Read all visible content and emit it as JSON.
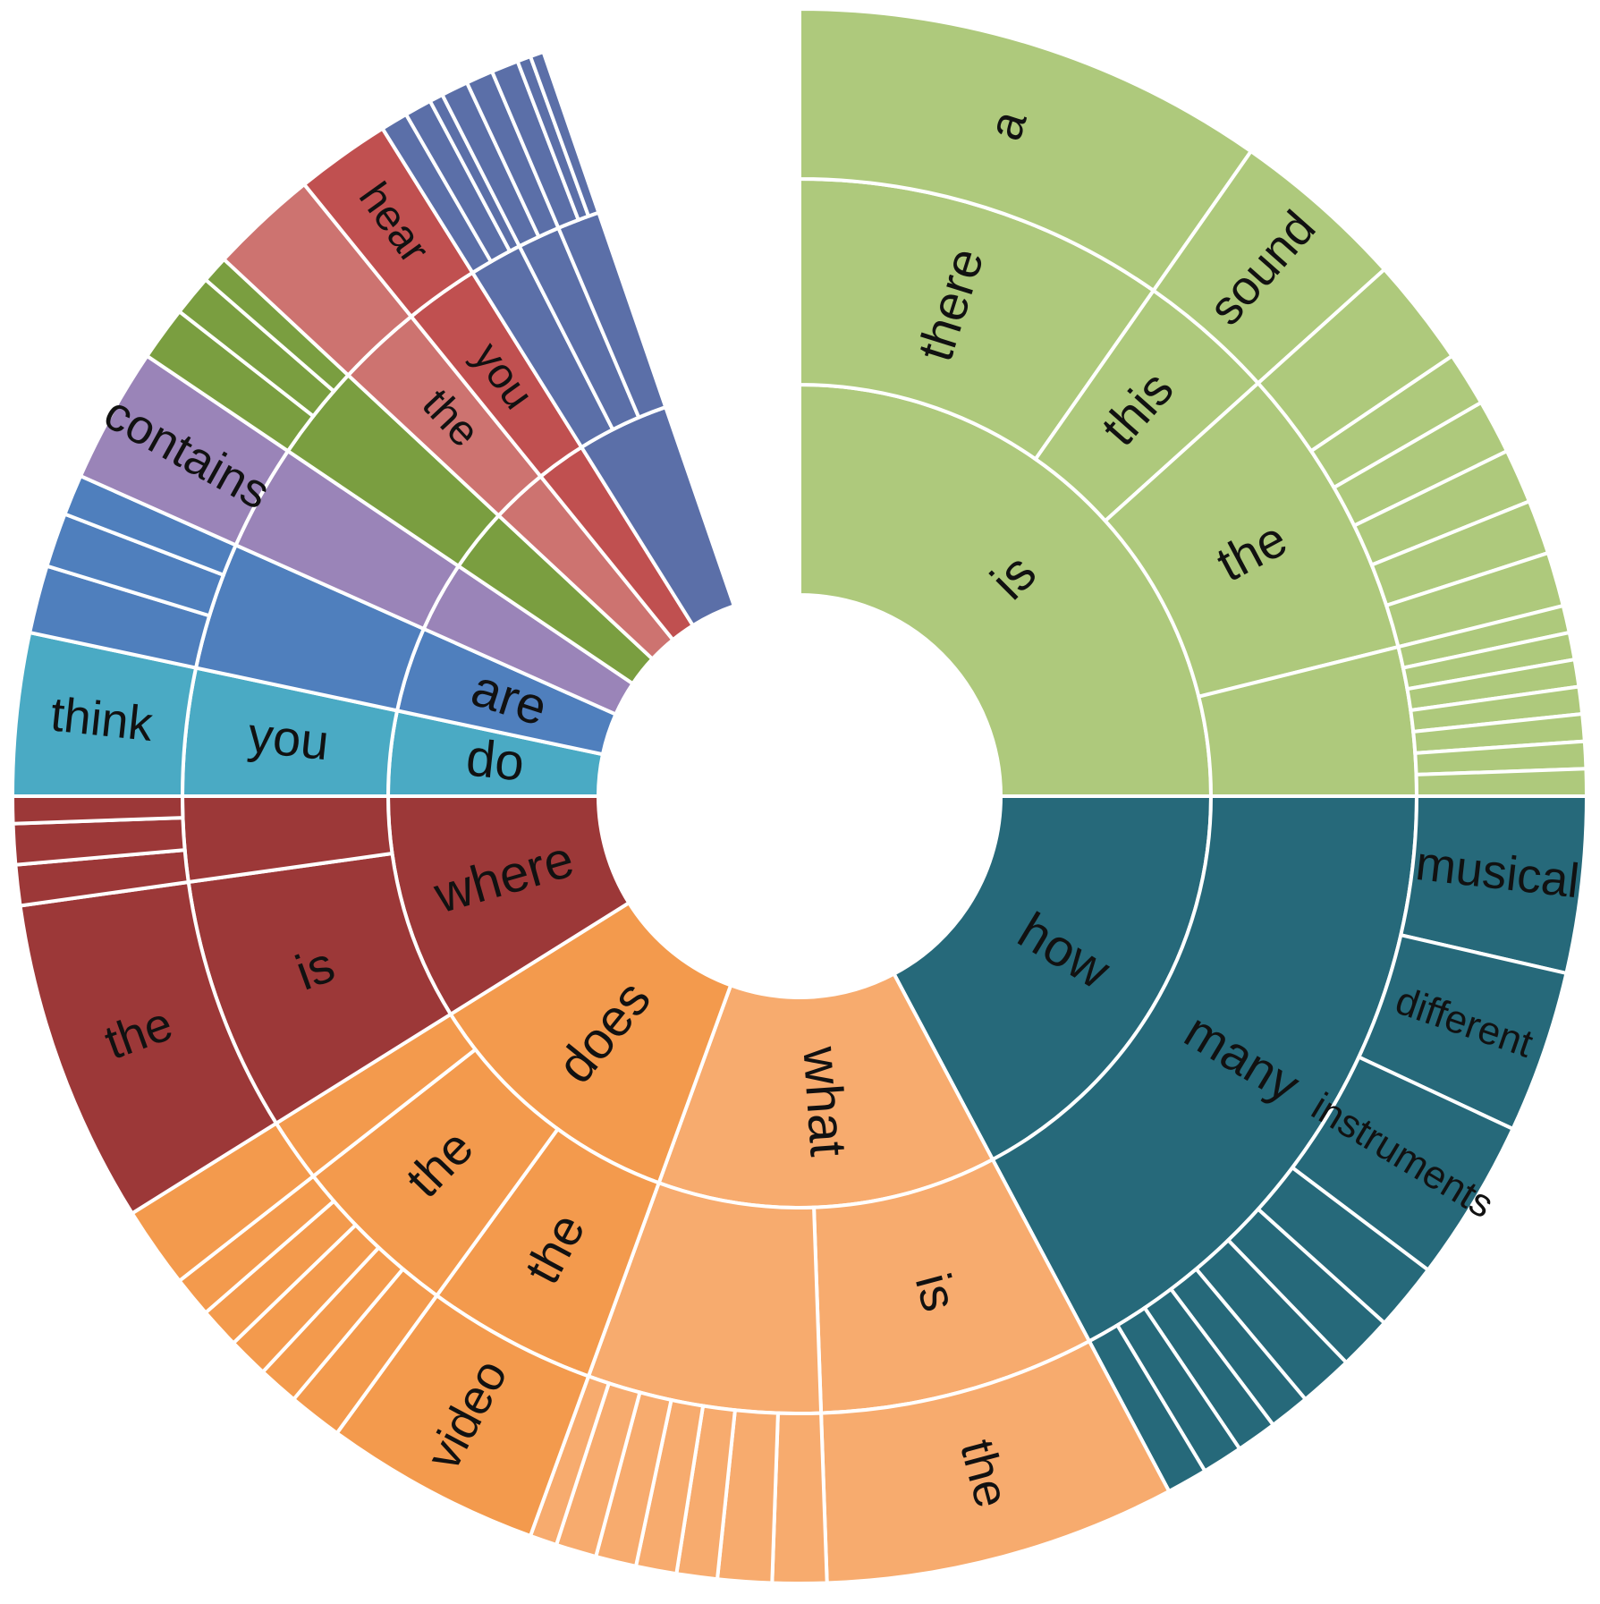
{
  "chart_data": {
    "type": "sunburst",
    "title": "",
    "value_unit": "degrees of arc",
    "rings": [
      "first word",
      "second word",
      "third word"
    ],
    "children": [
      {
        "name": "is",
        "value": 90,
        "color": "#aec97c",
        "children": [
          {
            "name": "there",
            "value": 35,
            "children": [
              {
                "name": "a",
                "value": 35
              }
            ]
          },
          {
            "name": "this",
            "value": 13,
            "children": [
              {
                "name": "sound",
                "value": 13
              }
            ]
          },
          {
            "name": "the",
            "value": 28,
            "children": [
              {
                "name": "",
                "value": 8
              },
              {
                "name": "",
                "value": 4
              },
              {
                "name": "",
                "value": 4
              },
              {
                "name": "",
                "value": 4
              },
              {
                "name": "",
                "value": 4
              },
              {
                "name": "",
                "value": 4
              }
            ]
          },
          {
            "name": "",
            "value": 14,
            "children": [
              {
                "name": "",
                "value": 2
              },
              {
                "name": "",
                "value": 2
              },
              {
                "name": "",
                "value": 2
              },
              {
                "name": "",
                "value": 2
              },
              {
                "name": "",
                "value": 2
              },
              {
                "name": "",
                "value": 2
              },
              {
                "name": "",
                "value": 2
              }
            ]
          }
        ]
      },
      {
        "name": "how",
        "value": 62,
        "color": "#26697a",
        "children": [
          {
            "name": "many",
            "value": 62,
            "children": [
              {
                "name": "musical",
                "value": 13
              },
              {
                "name": "different",
                "value": 12
              },
              {
                "name": "instruments",
                "value": 12
              },
              {
                "name": "",
                "value": 5
              },
              {
                "name": "",
                "value": 4
              },
              {
                "name": "",
                "value": 4
              },
              {
                "name": "",
                "value": 3
              },
              {
                "name": "",
                "value": 3
              },
              {
                "name": "",
                "value": 3
              },
              {
                "name": "",
                "value": 3
              }
            ]
          }
        ]
      },
      {
        "name": "what",
        "value": 48,
        "color": "#f7ab6e",
        "children": [
          {
            "name": "is",
            "value": 26,
            "children": [
              {
                "name": "the",
                "value": 26
              }
            ]
          },
          {
            "name": "",
            "value": 22,
            "children": [
              {
                "name": "",
                "value": 4
              },
              {
                "name": "",
                "value": 4
              },
              {
                "name": "",
                "value": 3
              },
              {
                "name": "",
                "value": 3
              },
              {
                "name": "",
                "value": 3
              },
              {
                "name": "",
                "value": 3
              },
              {
                "name": "",
                "value": 2
              }
            ]
          }
        ]
      },
      {
        "name": "does",
        "value": 38,
        "color": "#f39a4d",
        "children": [
          {
            "name": "the",
            "value": 16,
            "children": [
              {
                "name": "video",
                "value": 16
              }
            ]
          },
          {
            "name": "the",
            "value": 16,
            "children": [
              {
                "name": "",
                "value": 4
              },
              {
                "name": "",
                "value": 3
              },
              {
                "name": "",
                "value": 3
              },
              {
                "name": "",
                "value": 3
              },
              {
                "name": "",
                "value": 3
              }
            ]
          },
          {
            "name": "",
            "value": 6,
            "children": [
              {
                "name": "",
                "value": 6
              }
            ]
          }
        ]
      },
      {
        "name": "where",
        "value": 32,
        "color": "#9c3838",
        "children": [
          {
            "name": "is",
            "value": 24,
            "children": [
              {
                "name": "the",
                "value": 24
              }
            ]
          },
          {
            "name": "",
            "value": 8,
            "children": [
              {
                "name": "",
                "value": 3
              },
              {
                "name": "",
                "value": 3
              },
              {
                "name": "",
                "value": 2
              }
            ]
          }
        ]
      },
      {
        "name": "do",
        "value": 12,
        "color": "#4aaac4",
        "children": [
          {
            "name": "you",
            "value": 12,
            "children": [
              {
                "name": "think",
                "value": 12
              }
            ]
          }
        ]
      },
      {
        "name": "are",
        "value": 12,
        "color": "#4f7fbd",
        "children": [
          {
            "name": "",
            "value": 12,
            "children": [
              {
                "name": "",
                "value": 5
              },
              {
                "name": "",
                "value": 4
              },
              {
                "name": "",
                "value": 3
              }
            ]
          }
        ]
      },
      {
        "name": "",
        "value": 10,
        "color": "#9a84b8",
        "children": [
          {
            "name": "",
            "value": 10,
            "children": [
              {
                "name": "contains",
                "value": 10
              }
            ]
          }
        ]
      },
      {
        "name": "",
        "value": 9,
        "color": "#7a9e40",
        "children": [
          {
            "name": "",
            "value": 9,
            "children": [
              {
                "name": "",
                "value": 4
              },
              {
                "name": "",
                "value": 3
              },
              {
                "name": "",
                "value": 2
              }
            ]
          }
        ]
      },
      {
        "name": "",
        "value": 8,
        "color": "#cd7370",
        "children": [
          {
            "name": "the",
            "value": 8,
            "children": [
              {
                "name": "",
                "value": 8
              }
            ]
          }
        ]
      },
      {
        "name": "",
        "value": 7,
        "color": "#c05050",
        "children": [
          {
            "name": "you",
            "value": 7,
            "children": [
              {
                "name": "hear",
                "value": 7
              }
            ]
          }
        ]
      },
      {
        "name": "",
        "value": 13,
        "color": "#5b6fa8",
        "children": [
          {
            "name": "",
            "value": 5,
            "children": [
              {
                "name": "",
                "value": 2
              },
              {
                "name": "",
                "value": 2
              },
              {
                "name": "",
                "value": 1
              }
            ]
          },
          {
            "name": "",
            "value": 4,
            "children": [
              {
                "name": "",
                "value": 2
              },
              {
                "name": "",
                "value": 2
              }
            ]
          },
          {
            "name": "",
            "value": 4,
            "children": [
              {
                "name": "",
                "value": 2
              },
              {
                "name": "",
                "value": 1
              },
              {
                "name": "",
                "value": 1
              }
            ]
          }
        ]
      }
    ]
  },
  "palette": [
    "#aec97c",
    "#26697a",
    "#f7ab6e",
    "#f39a4d",
    "#9c3838",
    "#4aaac4",
    "#4f7fbd",
    "#9a84b8",
    "#7a9e40",
    "#cd7370",
    "#c05050",
    "#5b6fa8"
  ]
}
